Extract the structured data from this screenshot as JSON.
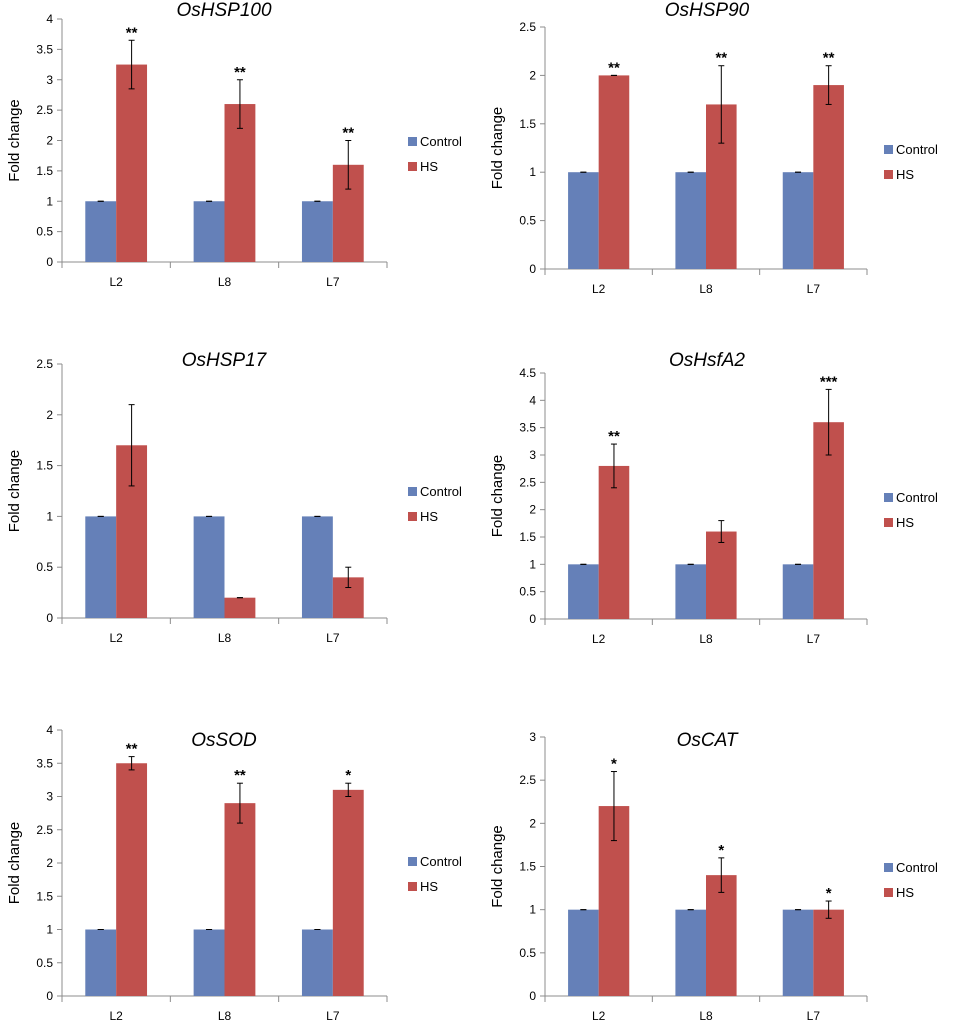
{
  "colors": {
    "control": "#6580b8",
    "hs": "#c0504d"
  },
  "chart_data": [
    {
      "type": "bar",
      "title": "OsHSP100",
      "ylabel": "Fold change",
      "xlabel": "",
      "categories": [
        "L2",
        "L8",
        "L7"
      ],
      "ylim": [
        0,
        4
      ],
      "yticks": [
        "0",
        "0.5",
        "1",
        "1.5",
        "2",
        "2.5",
        "3",
        "3.5",
        "4"
      ],
      "legend": [
        "Control",
        "HS"
      ],
      "series": [
        {
          "name": "Control",
          "values": [
            1,
            1,
            1
          ],
          "errors": [
            0,
            0,
            0
          ]
        },
        {
          "name": "HS",
          "values": [
            3.25,
            2.6,
            1.6
          ],
          "errors": [
            0.4,
            0.4,
            0.4
          ]
        }
      ],
      "annotations": [
        "**",
        "**",
        "**"
      ]
    },
    {
      "type": "bar",
      "title": "OsHSP90",
      "ylabel": "Fold change",
      "xlabel": "",
      "categories": [
        "L2",
        "L8",
        "L7"
      ],
      "ylim": [
        0,
        2.5
      ],
      "yticks": [
        "0",
        "0.5",
        "1",
        "1.5",
        "2",
        "2.5"
      ],
      "legend": [
        "Control",
        "HS"
      ],
      "series": [
        {
          "name": "Control",
          "values": [
            1,
            1,
            1
          ],
          "errors": [
            0,
            0,
            0
          ]
        },
        {
          "name": "HS",
          "values": [
            2.0,
            1.7,
            1.9
          ],
          "errors": [
            0,
            0.4,
            0.2
          ]
        }
      ],
      "annotations": [
        "**",
        "**",
        "**"
      ]
    },
    {
      "type": "bar",
      "title": "OsHSP17",
      "ylabel": "Fold change",
      "xlabel": "",
      "categories": [
        "L2",
        "L8",
        "L7"
      ],
      "ylim": [
        0,
        2.5
      ],
      "yticks": [
        "0",
        "0.5",
        "1",
        "1.5",
        "2",
        "2.5"
      ],
      "legend": [
        "Control",
        "HS"
      ],
      "series": [
        {
          "name": "Control",
          "values": [
            1,
            1,
            1
          ],
          "errors": [
            0,
            0,
            0
          ]
        },
        {
          "name": "HS",
          "values": [
            1.7,
            0.2,
            0.4
          ],
          "errors": [
            0.4,
            0,
            0.1
          ]
        }
      ],
      "annotations": [
        "",
        "",
        ""
      ]
    },
    {
      "type": "bar",
      "title": "OsHsfA2",
      "ylabel": "Fold change",
      "xlabel": "",
      "categories": [
        "L2",
        "L8",
        "L7"
      ],
      "ylim": [
        0,
        4.5
      ],
      "yticks": [
        "0",
        "0.5",
        "1",
        "1.5",
        "2",
        "2.5",
        "3",
        "3.5",
        "4",
        "4.5"
      ],
      "legend": [
        "Control",
        "HS"
      ],
      "series": [
        {
          "name": "Control",
          "values": [
            1,
            1,
            1
          ],
          "errors": [
            0,
            0,
            0
          ]
        },
        {
          "name": "HS",
          "values": [
            2.8,
            1.6,
            3.6
          ],
          "errors": [
            0.4,
            0.2,
            0.6
          ]
        }
      ],
      "annotations": [
        "**",
        "",
        "***"
      ]
    },
    {
      "type": "bar",
      "title": "OsSOD",
      "ylabel": "Fold change",
      "xlabel": "",
      "categories": [
        "L2",
        "L8",
        "L7"
      ],
      "ylim": [
        0,
        4
      ],
      "yticks": [
        "0",
        "0.5",
        "1",
        "1.5",
        "2",
        "2.5",
        "3",
        "3.5",
        "4"
      ],
      "legend": [
        "Control",
        "HS"
      ],
      "series": [
        {
          "name": "Control",
          "values": [
            1,
            1,
            1
          ],
          "errors": [
            0,
            0,
            0
          ]
        },
        {
          "name": "HS",
          "values": [
            3.5,
            2.9,
            3.1
          ],
          "errors": [
            0.1,
            0.3,
            0.1
          ]
        }
      ],
      "annotations": [
        "**",
        "**",
        "*"
      ]
    },
    {
      "type": "bar",
      "title": "OsCAT",
      "ylabel": "Fold change",
      "xlabel": "",
      "categories": [
        "L2",
        "L8",
        "L7"
      ],
      "ylim": [
        0,
        3
      ],
      "yticks": [
        "0",
        "0.5",
        "1",
        "1.5",
        "2",
        "2.5",
        "3"
      ],
      "legend": [
        "Control",
        "HS"
      ],
      "series": [
        {
          "name": "Control",
          "values": [
            1,
            1,
            1
          ],
          "errors": [
            0,
            0,
            0
          ]
        },
        {
          "name": "HS",
          "values": [
            2.2,
            1.4,
            1.0
          ],
          "errors": [
            0.4,
            0.2,
            0.1
          ]
        }
      ],
      "annotations": [
        "*",
        "*",
        "*"
      ]
    }
  ]
}
